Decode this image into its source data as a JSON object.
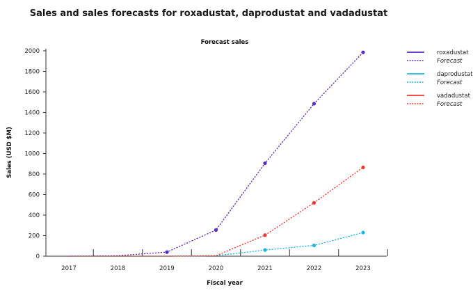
{
  "chart_data": {
    "type": "line",
    "title": "Sales and sales forecasts for roxadustat, daprodustat and vadadustat",
    "subtitle": "Forecast sales",
    "xlabel": "Fiscal year",
    "ylabel": "Sales (USD $M)",
    "categories": [
      "2017",
      "2018",
      "2019",
      "2020",
      "2021",
      "2022",
      "2023"
    ],
    "ylim": [
      0,
      2000
    ],
    "yticks": [
      0,
      200,
      400,
      600,
      800,
      1000,
      1200,
      1400,
      1600,
      1800,
      2000
    ],
    "grid": false,
    "legend_position": "right",
    "forecast_label": "Forecast",
    "series": [
      {
        "name": "roxadustat",
        "color": "#5b2bbf",
        "values": [
          0,
          5,
          40,
          255,
          905,
          1485,
          1985
        ],
        "markers": [
          "2019",
          "2020",
          "2021",
          "2022",
          "2023"
        ]
      },
      {
        "name": "daprodustat",
        "color": "#1ab8e0",
        "values": [
          0,
          0,
          0,
          5,
          60,
          105,
          230
        ],
        "markers": [
          "2021",
          "2022",
          "2023"
        ]
      },
      {
        "name": "vadadustat",
        "color": "#f0382e",
        "values": [
          0,
          0,
          0,
          5,
          205,
          520,
          865
        ],
        "markers": [
          "2021",
          "2022",
          "2023"
        ]
      }
    ]
  }
}
